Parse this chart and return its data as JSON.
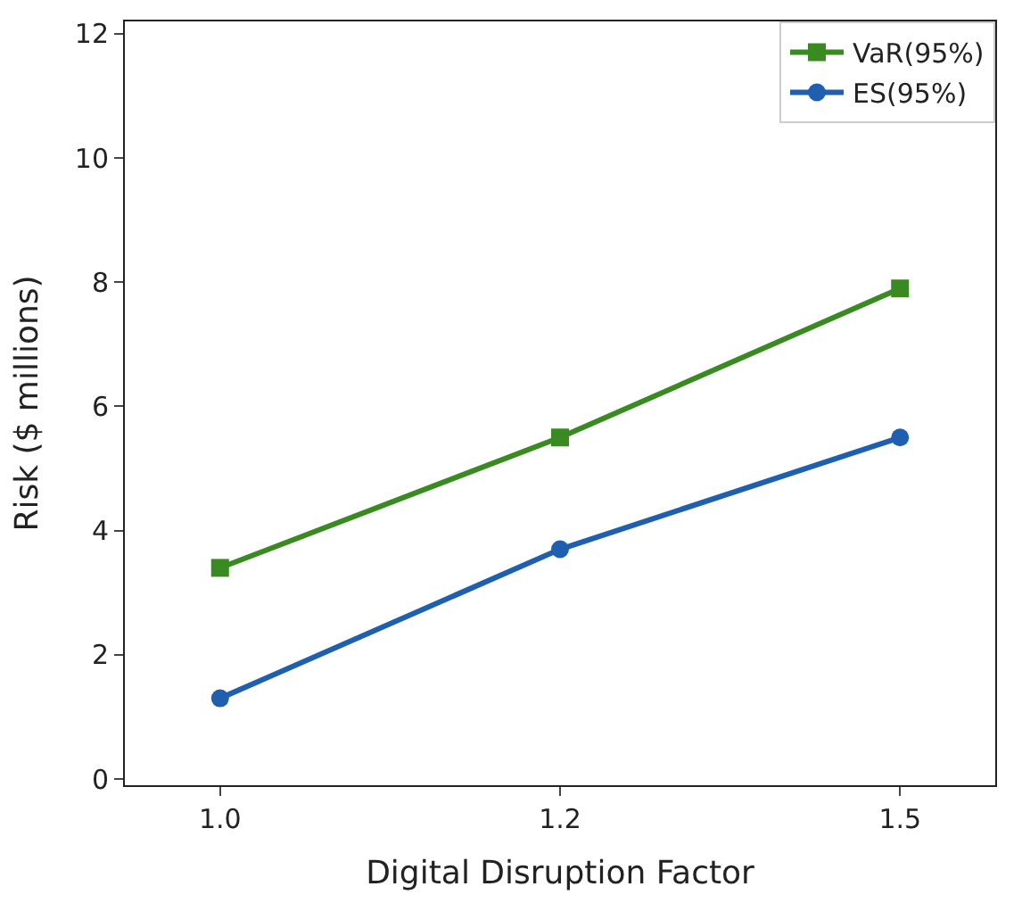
{
  "chart_data": {
    "type": "line",
    "xlabel": "Digital Disruption Factor",
    "ylabel": "Risk ($ millions)",
    "categories": [
      "1.0",
      "1.2",
      "1.5"
    ],
    "series": [
      {
        "name": "VaR(95%)",
        "color": "#3a8a22",
        "values": [
          3.4,
          5.5,
          7.9
        ],
        "marker": "square"
      },
      {
        "name": "ES(95%)",
        "color": "#1f5fb0",
        "values": [
          1.3,
          3.7,
          5.5
        ],
        "marker": "circle"
      }
    ],
    "ylim": [
      -0.1,
      12.2
    ],
    "yticks": [
      0,
      2,
      4,
      6,
      8,
      10,
      12
    ],
    "legend": "top right",
    "line_style": "solid"
  }
}
